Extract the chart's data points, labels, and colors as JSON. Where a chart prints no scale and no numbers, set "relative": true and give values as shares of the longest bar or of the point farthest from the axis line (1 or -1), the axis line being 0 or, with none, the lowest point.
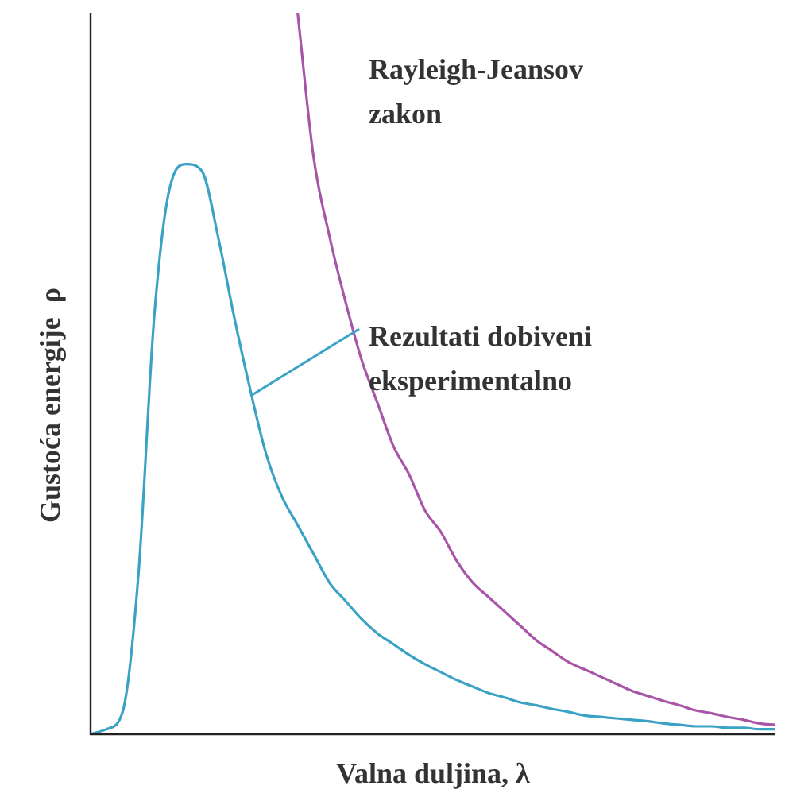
{
  "chart_data": {
    "type": "line",
    "relative": true,
    "xlabel": "Valna duljina, λ",
    "ylabel": "Gustoća energije  ρ",
    "categories": [
      null,
      null,
      null,
      null,
      null,
      null,
      null,
      null,
      null,
      null,
      null,
      null,
      null,
      null,
      null,
      null,
      null,
      null,
      null,
      null,
      null,
      null,
      null,
      null,
      null,
      null,
      null,
      null,
      null,
      null,
      null,
      null,
      null,
      null,
      null,
      null,
      null,
      null,
      null,
      null,
      null,
      null,
      null,
      null
    ],
    "series": [
      {
        "name": "Rayleigh-Jeansov zakon",
        "color": "#a855a8",
        "values": [
          null,
          null,
          null,
          null,
          null,
          null,
          null,
          null,
          null,
          null,
          null,
          null,
          null,
          1,
          0.8,
          0.69,
          0.6,
          0.52,
          0.46,
          0.4,
          0.36,
          0.31,
          0.28,
          0.24,
          0.21,
          0.19,
          0.17,
          0.15,
          0.13,
          0.115,
          0.1,
          0.09,
          0.08,
          0.07,
          0.06,
          0.053,
          0.046,
          0.04,
          0.033,
          0.029,
          0.024,
          0.02,
          0.015,
          0.013
        ]
      },
      {
        "name": "Rezultati dobiveni eksperimentalno",
        "color": "#3aa2c4",
        "values": [
          0,
          0.007,
          0.03,
          0.22,
          0.58,
          0.76,
          0.79,
          0.78,
          0.69,
          0.58,
          0.48,
          0.39,
          0.33,
          0.29,
          0.25,
          0.21,
          0.185,
          0.16,
          0.14,
          0.125,
          0.11,
          0.097,
          0.086,
          0.075,
          0.066,
          0.057,
          0.051,
          0.044,
          0.04,
          0.035,
          0.031,
          0.026,
          0.024,
          0.022,
          0.02,
          0.018,
          0.015,
          0.013,
          0.011,
          0.011,
          0.009,
          0.009,
          0.007,
          0.007
        ]
      }
    ]
  }
}
